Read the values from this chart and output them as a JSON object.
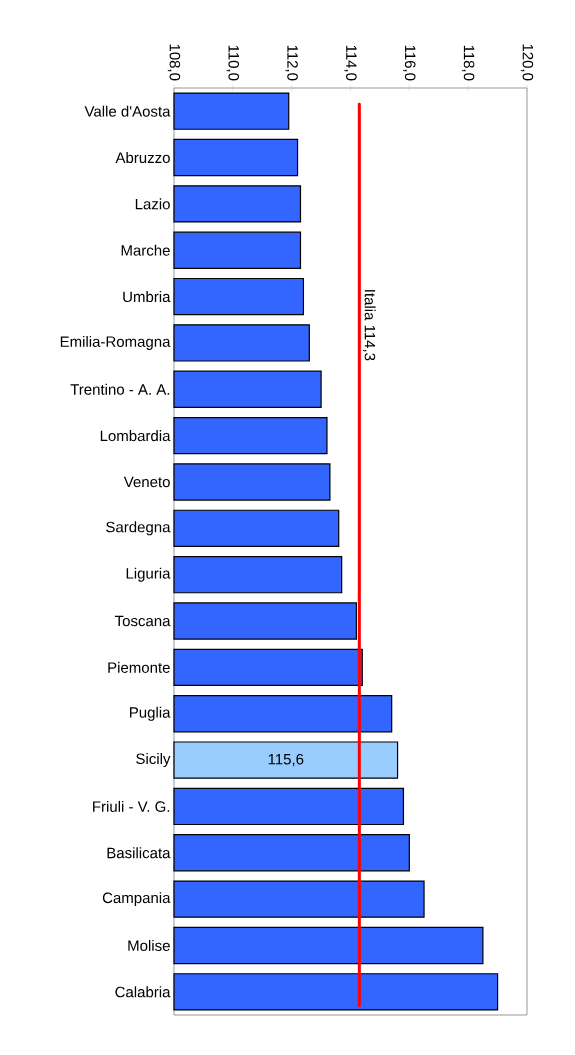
{
  "chart_data": {
    "type": "bar",
    "orientation": "horizontal",
    "categories": [
      "Valle d'Aosta",
      "Abruzzo",
      "Lazio",
      "Marche",
      "Umbria",
      "Emilia-Romagna",
      "Trentino - A. A.",
      "Lombardia",
      "Veneto",
      "Sardegna",
      "Liguria",
      "Toscana",
      "Piemonte",
      "Puglia",
      "Sicily",
      "Friuli - V. G.",
      "Basilicata",
      "Campania",
      "Molise",
      "Calabria"
    ],
    "values": [
      111.9,
      112.2,
      112.3,
      112.3,
      112.4,
      112.6,
      113.0,
      113.2,
      113.3,
      113.6,
      113.7,
      114.2,
      114.4,
      115.4,
      115.6,
      115.8,
      116.0,
      116.5,
      118.5,
      119.0
    ],
    "colors": [
      "#3366ff",
      "#3366ff",
      "#3366ff",
      "#3366ff",
      "#3366ff",
      "#3366ff",
      "#3366ff",
      "#3366ff",
      "#3366ff",
      "#3366ff",
      "#3366ff",
      "#3366ff",
      "#3366ff",
      "#3366ff",
      "#99ccff",
      "#3366ff",
      "#3366ff",
      "#3366ff",
      "#3366ff",
      "#3366ff"
    ],
    "value_labels": [
      null,
      null,
      null,
      null,
      null,
      null,
      null,
      null,
      null,
      null,
      null,
      null,
      null,
      null,
      "115,6",
      null,
      null,
      null,
      null,
      null
    ],
    "xlim": [
      108,
      120
    ],
    "xticks": [
      {
        "value": 108,
        "label": "108,0"
      },
      {
        "value": 110,
        "label": "110,0"
      },
      {
        "value": 112,
        "label": "112,0"
      },
      {
        "value": 114,
        "label": "114,0"
      },
      {
        "value": 116,
        "label": "116,0"
      },
      {
        "value": 118,
        "label": "118,0"
      },
      {
        "value": 120,
        "label": "120,0"
      }
    ],
    "ref_lines": [
      {
        "axis": "x",
        "value": 114.3,
        "label": "Italia 114,3",
        "color": "#ff0000"
      }
    ],
    "grid": false
  }
}
